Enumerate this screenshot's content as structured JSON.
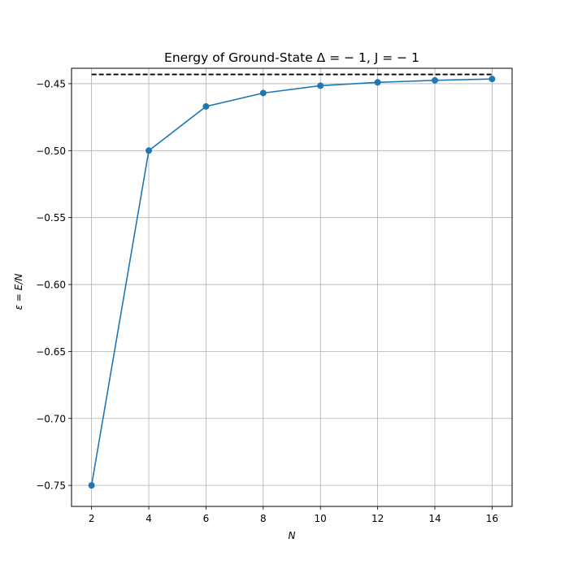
{
  "chart_data": {
    "type": "line",
    "title": "Energy of Ground-State Δ = − 1, J = − 1",
    "xlabel": "N",
    "ylabel": "ε = E/N",
    "xlim": [
      1.3,
      16.7
    ],
    "ylim": [
      -0.7657,
      -0.4385
    ],
    "grid": true,
    "x_ticks": [
      2,
      4,
      6,
      8,
      10,
      12,
      14,
      16
    ],
    "x_tick_labels": [
      "2",
      "4",
      "6",
      "8",
      "10",
      "12",
      "14",
      "16"
    ],
    "y_ticks": [
      -0.75,
      -0.7,
      -0.65,
      -0.6,
      -0.55,
      -0.5,
      -0.45
    ],
    "y_tick_labels": [
      "−0.75",
      "−0.70",
      "−0.65",
      "−0.60",
      "−0.55",
      "−0.50",
      "−0.45"
    ],
    "series": [
      {
        "style": "line+markers",
        "color": "#1f77b4",
        "x": [
          2,
          4,
          6,
          8,
          10,
          12,
          14,
          16
        ],
        "y": [
          -0.75,
          -0.5,
          -0.467,
          -0.457,
          -0.4515,
          -0.449,
          -0.4475,
          -0.4465
        ]
      },
      {
        "style": "dashed",
        "color": "#000000",
        "x": [
          2,
          16
        ],
        "y": [
          -0.4431,
          -0.4431
        ]
      }
    ]
  }
}
